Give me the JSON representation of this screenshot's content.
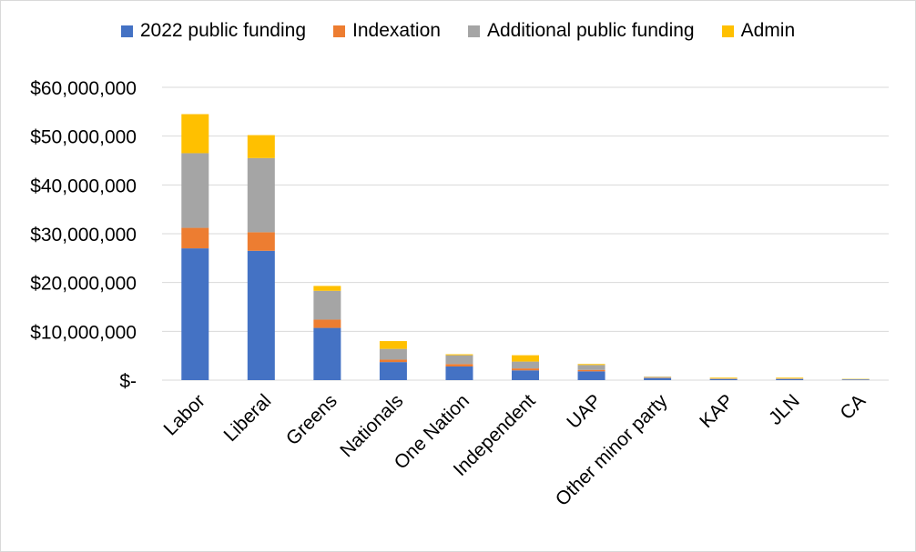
{
  "chart_data": {
    "type": "bar",
    "stacked": true,
    "categories": [
      "Labor",
      "Liberal",
      "Greens",
      "Nationals",
      "One Nation",
      "Independent",
      "UAP",
      "Other minor party",
      "KAP",
      "JLN",
      "CA"
    ],
    "series": [
      {
        "name": "2022 public funding",
        "color": "#4472c4",
        "values": [
          27000000,
          26500000,
          10700000,
          3700000,
          2800000,
          2000000,
          1800000,
          400000,
          200000,
          200000,
          100000
        ]
      },
      {
        "name": "Indexation",
        "color": "#ed7d31",
        "values": [
          4200000,
          3800000,
          1700000,
          500000,
          500000,
          400000,
          300000,
          50000,
          50000,
          50000,
          30000
        ]
      },
      {
        "name": "Additional public funding",
        "color": "#a5a5a5",
        "values": [
          15300000,
          15200000,
          5900000,
          2200000,
          1800000,
          1400000,
          1000000,
          200000,
          100000,
          100000,
          60000
        ]
      },
      {
        "name": "Admin",
        "color": "#ffc000",
        "values": [
          8000000,
          4700000,
          1000000,
          1600000,
          200000,
          1300000,
          200000,
          50000,
          150000,
          150000,
          60000
        ]
      }
    ],
    "yticks": [
      "$-",
      "$10,000,000",
      "$20,000,000",
      "$30,000,000",
      "$40,000,000",
      "$50,000,000",
      "$60,000,000"
    ],
    "ylim": [
      0,
      60000000
    ],
    "grid": true,
    "legend_position": "top"
  }
}
